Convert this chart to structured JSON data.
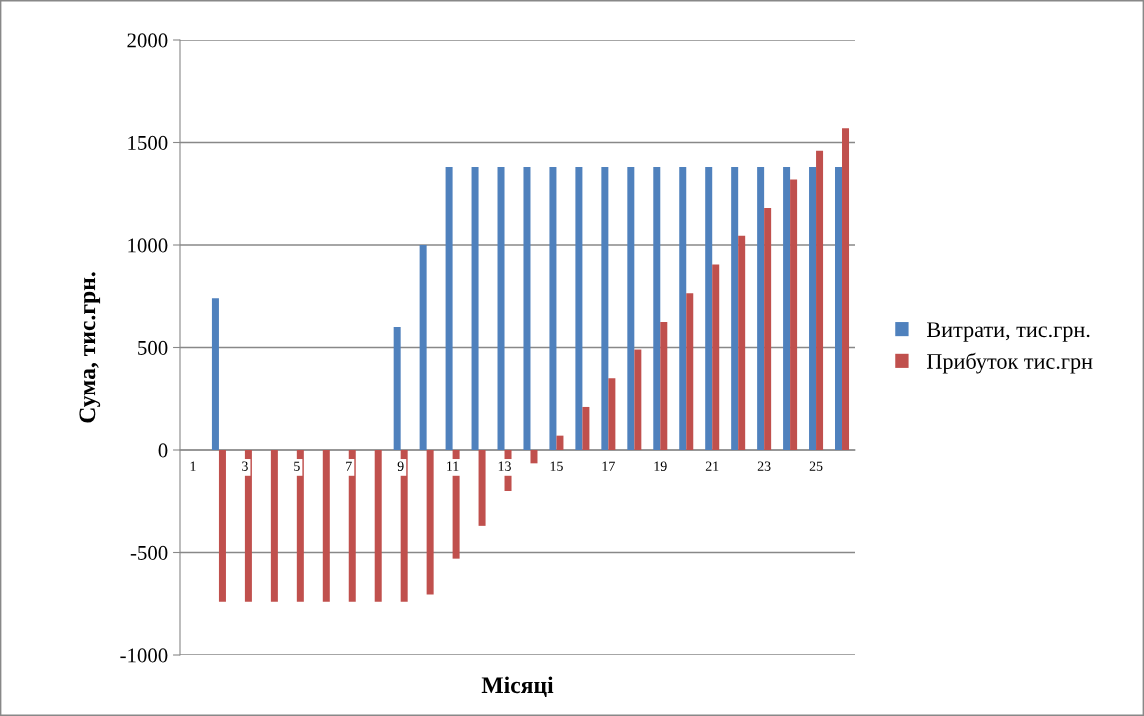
{
  "chart_data": {
    "type": "bar",
    "xlabel": "Місяці",
    "ylabel": "Сума, тис.грн.",
    "categories": [
      "1",
      null,
      "3",
      null,
      "5",
      null,
      "7",
      null,
      "9",
      null,
      "11",
      null,
      "13",
      null,
      "15",
      null,
      "17",
      null,
      "19",
      null,
      "21",
      null,
      "23",
      null,
      "25",
      null
    ],
    "series": [
      {
        "name": "Витрати, тис.грн.",
        "color": "#4f81bd",
        "values": [
          null,
          740,
          0,
          0,
          0,
          0,
          0,
          0,
          600,
          1000,
          1380,
          1380,
          1380,
          1380,
          1380,
          1380,
          1380,
          1380,
          1380,
          1380,
          1380,
          1380,
          1380,
          1380,
          1380,
          1380
        ]
      },
      {
        "name": "Прибуток тис.грн",
        "color": "#c0504d",
        "values": [
          null,
          -740,
          -740,
          -740,
          -740,
          -740,
          -740,
          -740,
          -740,
          -705,
          -530,
          -370,
          -200,
          -65,
          70,
          210,
          350,
          490,
          625,
          765,
          905,
          1045,
          1180,
          1320,
          1460,
          1570
        ]
      }
    ],
    "ylim": [
      -1000,
      2000
    ],
    "yticks": [
      -1000,
      -500,
      0,
      500,
      1000,
      1500,
      2000
    ],
    "grid": "y",
    "legend": "right"
  }
}
